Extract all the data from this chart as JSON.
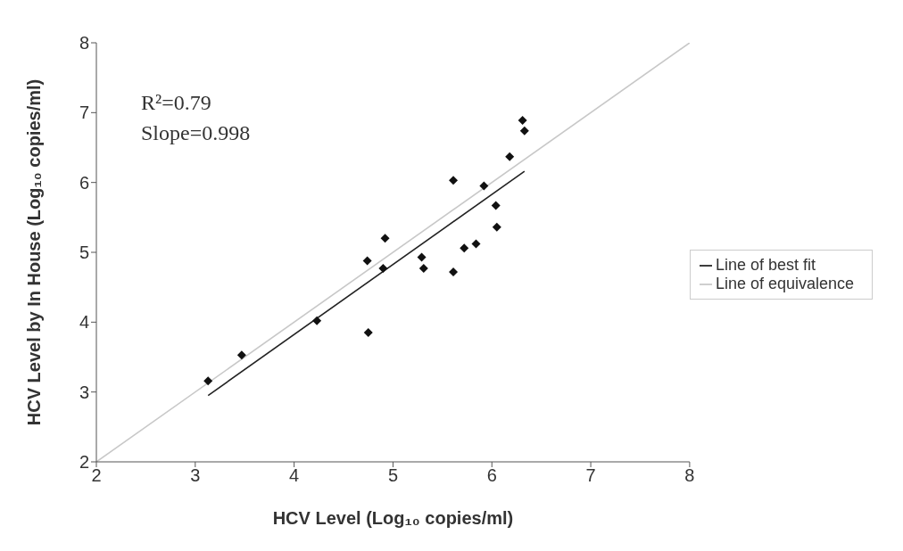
{
  "chart_data": {
    "type": "scatter",
    "xlabel": "HCV Level (Log₁₀ copies/ml)",
    "ylabel": "HCV Level by In House (Log₁₀ copies/ml)",
    "annotations": [
      "R²=0.79",
      "Slope=0.998"
    ],
    "xlim": [
      2,
      8
    ],
    "xticks": [
      2,
      3,
      4,
      5,
      6,
      7,
      8
    ],
    "ylim": [
      2,
      8
    ],
    "yticks": [
      2,
      3,
      4,
      5,
      6,
      7,
      8
    ],
    "legend": "right",
    "series": [
      {
        "color": "#111111",
        "marker": "diamond",
        "x": [
          3.13,
          3.47,
          4.23,
          4.75,
          4.74,
          4.9,
          4.92,
          5.29,
          5.31,
          5.61,
          5.61,
          5.72,
          5.84,
          5.92,
          6.04,
          6.05,
          6.18,
          6.31,
          6.33
        ],
        "values": [
          3.16,
          3.53,
          4.02,
          3.85,
          4.88,
          4.77,
          5.2,
          4.93,
          4.77,
          4.72,
          6.03,
          5.06,
          5.12,
          5.95,
          5.67,
          5.36,
          6.37,
          6.89,
          6.74
        ]
      },
      {
        "type": "line",
        "name": "Line of best fit",
        "color": "#222222",
        "x": [
          3.13,
          6.33
        ],
        "values": [
          2.95,
          6.16
        ]
      },
      {
        "type": "line",
        "name": "Line of equivalence",
        "color": "#c8c8c8",
        "x": [
          2,
          8
        ],
        "values": [
          2,
          8
        ]
      }
    ]
  }
}
